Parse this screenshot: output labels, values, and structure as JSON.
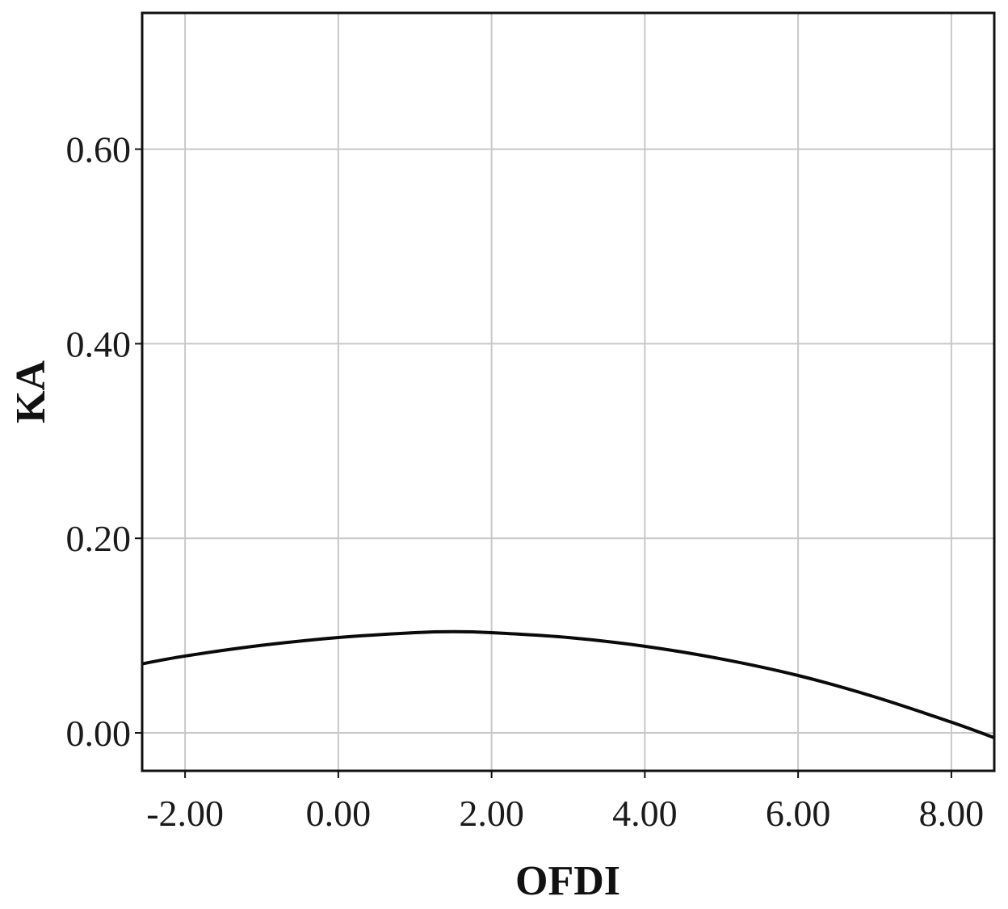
{
  "chart_data": {
    "type": "line",
    "title": "",
    "xlabel": "OFDI",
    "ylabel": "KA",
    "xlim": [
      -2.56,
      8.56
    ],
    "ylim": [
      -0.039,
      0.74
    ],
    "x_ticks": [
      -2,
      0,
      2,
      4,
      6,
      8
    ],
    "x_tick_labels": [
      "-2.00",
      "0.00",
      "2.00",
      "4.00",
      "6.00",
      "8.00"
    ],
    "y_ticks": [
      0,
      0.2,
      0.4,
      0.6
    ],
    "y_tick_labels": [
      "0.00",
      "0.20",
      "0.40",
      "0.60"
    ],
    "grid": true,
    "legend": "none",
    "series": [
      {
        "x": [
          -2.56,
          -2.0,
          -1.0,
          0.0,
          1.0,
          1.5,
          2.0,
          3.0,
          4.0,
          5.0,
          6.0,
          7.0,
          8.0,
          8.56
        ],
        "y": [
          0.071,
          0.079,
          0.09,
          0.098,
          0.103,
          0.104,
          0.103,
          0.098,
          0.089,
          0.076,
          0.059,
          0.037,
          0.011,
          -0.005
        ]
      }
    ],
    "colors": {
      "line": "#0a0a0a",
      "grid": "#c8c8c8",
      "frame": "#111111"
    }
  }
}
